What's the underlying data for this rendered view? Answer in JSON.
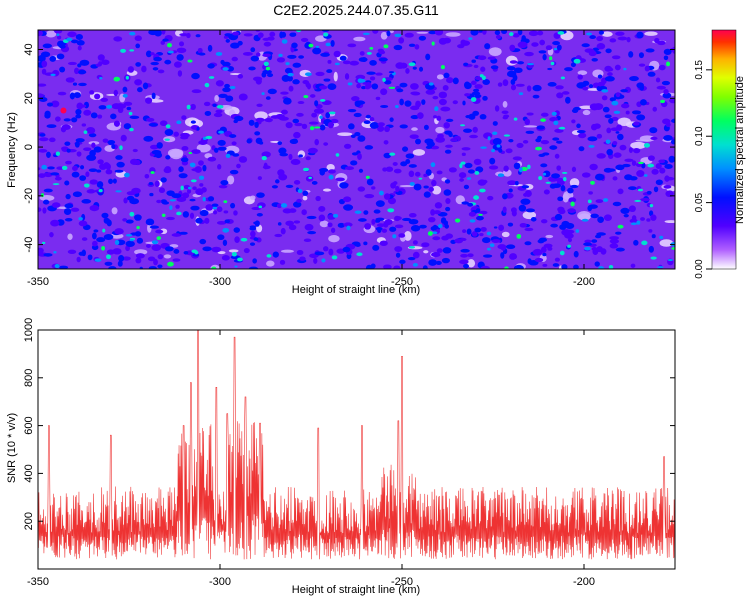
{
  "title": "C2E2.2025.244.07.35.G11",
  "chart_data": [
    {
      "type": "heatmap",
      "xlabel": "Height of straight line (km)",
      "ylabel": "Frequency (Hz)",
      "xlim": [
        -350,
        -175
      ],
      "ylim": [
        -50,
        48
      ],
      "xticks": [
        -350,
        -300,
        -250,
        -200
      ],
      "yticks": [
        -40,
        -20,
        0,
        20,
        40
      ],
      "colorbar": {
        "label": "Normalized spectral amplitude",
        "range": [
          0,
          0.18
        ],
        "ticks": [
          "0.00",
          "0.05",
          "0.10",
          "0.15"
        ],
        "colors": [
          "#ffffff",
          "#a000ff",
          "#0000ff",
          "#00c8ff",
          "#00ff80",
          "#c8ff00",
          "#ffb000",
          "#ff0040"
        ]
      },
      "typical_value": 0.03,
      "max_value": 0.18,
      "peak_location": {
        "x": -343,
        "y": 15
      }
    },
    {
      "type": "line",
      "xlabel": "Height of straight line (km)",
      "ylabel": "SNR (10 * v/v)",
      "xlim": [
        -350,
        -175
      ],
      "ylim": [
        0,
        1000
      ],
      "xticks": [
        -350,
        -300,
        -250,
        -200
      ],
      "yticks": [
        200,
        400,
        600,
        800,
        1000
      ],
      "color": "#ee3333",
      "peaks": [
        {
          "x": -306,
          "y": 1000
        },
        {
          "x": -296,
          "y": 970
        },
        {
          "x": -308,
          "y": 780
        },
        {
          "x": -301,
          "y": 760
        },
        {
          "x": -250,
          "y": 890
        },
        {
          "x": -251,
          "y": 620
        },
        {
          "x": -293,
          "y": 720
        },
        {
          "x": -298,
          "y": 650
        },
        {
          "x": -310,
          "y": 600
        },
        {
          "x": -289,
          "y": 610
        },
        {
          "x": -261,
          "y": 600
        },
        {
          "x": -273,
          "y": 590
        },
        {
          "x": -347,
          "y": 600
        },
        {
          "x": -330,
          "y": 560
        },
        {
          "x": -178,
          "y": 470
        }
      ],
      "baseline": 150,
      "noise_floor": 40
    }
  ]
}
